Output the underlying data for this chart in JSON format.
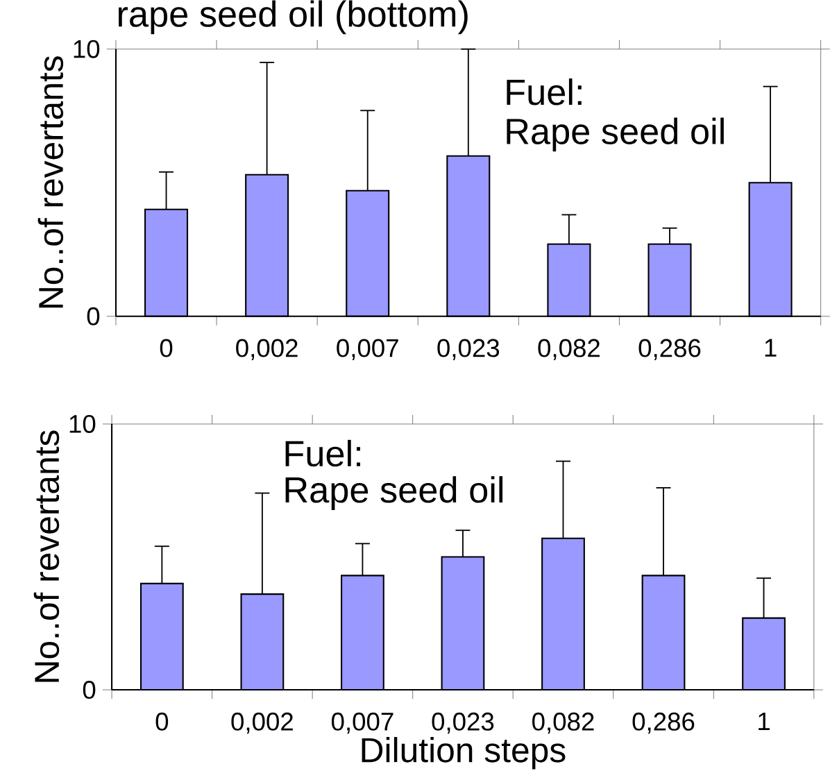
{
  "chart_data": [
    {
      "type": "bar",
      "title": "rape seed oil (bottom)",
      "ylabel": "No..of revertants",
      "annotations": [
        "Fuel:",
        "Rape seed oil"
      ],
      "categories": [
        "0",
        "0,002",
        "0,007",
        "0,023",
        "0,082",
        "0,286",
        "1"
      ],
      "values": [
        4.0,
        5.3,
        4.7,
        6.0,
        2.7,
        2.7,
        5.0
      ],
      "errors": [
        [
          4.0,
          5.4
        ],
        [
          5.3,
          9.5
        ],
        [
          4.7,
          7.7
        ],
        [
          6.0,
          10.0
        ],
        [
          2.7,
          3.8
        ],
        [
          2.7,
          3.3
        ],
        [
          5.0,
          8.6
        ]
      ],
      "color": "#9999ff",
      "ylim": [
        0,
        10
      ],
      "yticks": [
        0,
        10
      ]
    },
    {
      "type": "bar",
      "xlabel": "Dilution steps",
      "ylabel": "No..of revertants",
      "annotations": [
        "Fuel:",
        "Rape seed oil"
      ],
      "categories": [
        "0",
        "0,002",
        "0,007",
        "0,023",
        "0,082",
        "0,286",
        "1"
      ],
      "values": [
        4.0,
        3.6,
        4.3,
        5.0,
        5.7,
        4.3,
        2.7
      ],
      "errors": [
        [
          4.0,
          5.4
        ],
        [
          3.6,
          7.4
        ],
        [
          4.3,
          5.5
        ],
        [
          5.0,
          6.0
        ],
        [
          5.7,
          8.6
        ],
        [
          4.3,
          7.6
        ],
        [
          2.7,
          4.2
        ]
      ],
      "color": "#9999ff",
      "ylim": [
        0,
        10
      ],
      "yticks": [
        0,
        10
      ]
    }
  ]
}
